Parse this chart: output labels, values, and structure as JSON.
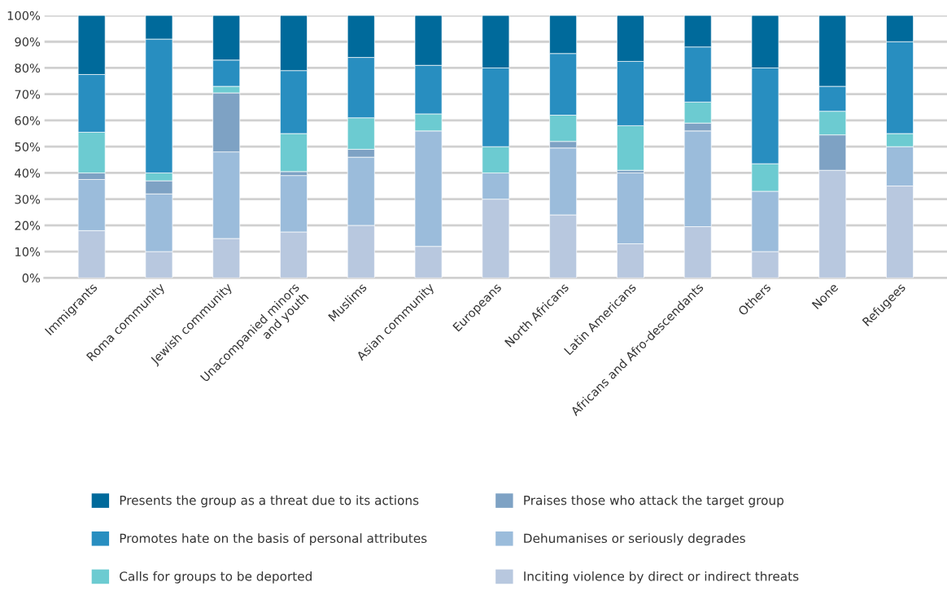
{
  "chart_data": {
    "type": "bar",
    "stacked": true,
    "categories": [
      "Immigrants",
      "Roma community",
      "Jewish community",
      "Unacompanied minors\nand youth",
      "Muslims",
      "Asian community",
      "Europeans",
      "North Africans",
      "Latin Americans",
      "Africans and Afro-descendants",
      "Others",
      "None",
      "Refugees"
    ],
    "series": [
      {
        "name": "Inciting violence by direct or indirect threats",
        "color": "#b8c8df",
        "values": [
          18,
          10,
          15,
          17.5,
          20,
          12,
          30,
          24,
          13,
          19.5,
          10,
          41,
          35
        ]
      },
      {
        "name": "Dehumanises or seriously degrades",
        "color": "#9bbcdb",
        "values": [
          19.5,
          22,
          33,
          21.5,
          26,
          44,
          10,
          25.5,
          27,
          36.5,
          23,
          0,
          15
        ]
      },
      {
        "name": "Praises those who attack the target group",
        "color": "#7ea2c4",
        "values": [
          2.5,
          5,
          22.5,
          1.5,
          3,
          0,
          0,
          2.5,
          1,
          3,
          0,
          13.5,
          0
        ]
      },
      {
        "name": "Calls for groups to be deported",
        "color": "#6ccbd1",
        "values": [
          15.5,
          3,
          2.5,
          14.5,
          12,
          6.5,
          10,
          10,
          17,
          8,
          10.5,
          9,
          5
        ]
      },
      {
        "name": "Promotes hate on the basis of personal attributes",
        "color": "#288ec0",
        "values": [
          22,
          51,
          10,
          24,
          23,
          18.5,
          30,
          23.5,
          24.5,
          21,
          36.5,
          9.5,
          35
        ]
      },
      {
        "name": "Presents the group as a threat due to its actions",
        "color": "#006a9b",
        "values": [
          22.5,
          9,
          17,
          21,
          16,
          19,
          20,
          14.5,
          17.5,
          12,
          20,
          27,
          10
        ]
      }
    ],
    "ylim": [
      0,
      100
    ],
    "yticks": [
      {
        "value": 0,
        "label": "0%"
      },
      {
        "value": 10,
        "label": "10%"
      },
      {
        "value": 20,
        "label": "20%"
      },
      {
        "value": 30,
        "label": "30%"
      },
      {
        "value": 40,
        "label": "40%"
      },
      {
        "value": 50,
        "label": "50%"
      },
      {
        "value": 60,
        "label": "60%"
      },
      {
        "value": 70,
        "label": "70%"
      },
      {
        "value": 80,
        "label": "80%"
      },
      {
        "value": 90,
        "label": "90%"
      },
      {
        "value": 100,
        "label": "100%"
      }
    ],
    "grid": "y",
    "legend": "bottom"
  }
}
